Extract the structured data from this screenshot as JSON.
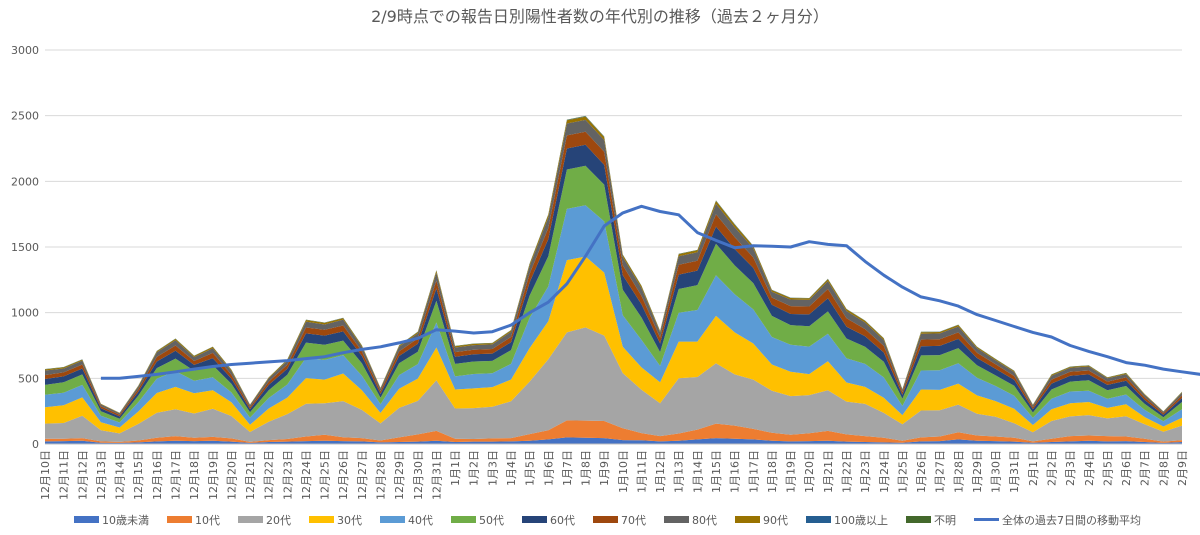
{
  "chart_data": {
    "type": "area",
    "title": "2/9時点での報告日別陽性者数の年代別の推移（過去２ヶ月分）",
    "xlabel": "",
    "ylabel": "",
    "ylim": [
      0,
      3000
    ],
    "yticks": [
      0,
      500,
      1000,
      1500,
      2000,
      2500,
      3000
    ],
    "grid": "horizontal",
    "legend_position": "bottom",
    "categories": [
      "12月10日",
      "12月11日",
      "12月12日",
      "12月13日",
      "12月14日",
      "12月15日",
      "12月16日",
      "12月17日",
      "12月18日",
      "12月19日",
      "12月20日",
      "12月21日",
      "12月22日",
      "12月23日",
      "12月24日",
      "12月25日",
      "12月26日",
      "12月27日",
      "12月28日",
      "12月29日",
      "12月30日",
      "12月31日",
      "1月1日",
      "1月2日",
      "1月3日",
      "1月4日",
      "1月5日",
      "1月6日",
      "1月7日",
      "1月8日",
      "1月9日",
      "1月10日",
      "1月11日",
      "1月12日",
      "1月13日",
      "1月14日",
      "1月15日",
      "1月16日",
      "1月17日",
      "1月18日",
      "1月19日",
      "1月20日",
      "1月21日",
      "1月22日",
      "1月23日",
      "1月24日",
      "1月25日",
      "1月26日",
      "1月27日",
      "1月28日",
      "1月29日",
      "1月30日",
      "1月31日",
      "2月1日",
      "2月2日",
      "2月3日",
      "2月4日",
      "2月5日",
      "2月6日",
      "2月7日",
      "2月8日",
      "2月9日"
    ],
    "series": [
      {
        "name": "10歳未満",
        "color": "#4472c4",
        "values": [
          20,
          22,
          25,
          10,
          8,
          12,
          20,
          25,
          22,
          24,
          18,
          8,
          15,
          18,
          22,
          25,
          22,
          20,
          12,
          15,
          18,
          25,
          15,
          18,
          18,
          20,
          25,
          35,
          50,
          48,
          45,
          30,
          28,
          20,
          25,
          35,
          45,
          40,
          35,
          25,
          20,
          22,
          25,
          18,
          15,
          12,
          10,
          20,
          22,
          35,
          25,
          22,
          18,
          10,
          15,
          20,
          25,
          20,
          22,
          15,
          8,
          15
        ]
      },
      {
        "name": "10代",
        "color": "#ed7d31",
        "values": [
          20,
          18,
          20,
          10,
          8,
          15,
          28,
          35,
          25,
          30,
          25,
          8,
          15,
          20,
          35,
          45,
          30,
          25,
          15,
          35,
          55,
          75,
          25,
          20,
          25,
          25,
          50,
          70,
          130,
          130,
          130,
          90,
          55,
          40,
          55,
          75,
          110,
          100,
          80,
          60,
          50,
          60,
          75,
          55,
          45,
          35,
          15,
          30,
          35,
          55,
          40,
          35,
          30,
          10,
          25,
          40,
          40,
          40,
          35,
          25,
          10,
          15
        ]
      },
      {
        "name": "20代",
        "color": "#a5a5a5",
        "values": [
          115,
          120,
          170,
          85,
          65,
          125,
          190,
          205,
          185,
          215,
          170,
          75,
          140,
          190,
          250,
          240,
          275,
          215,
          130,
          225,
          255,
          385,
          230,
          235,
          240,
          280,
          400,
          540,
          670,
          710,
          650,
          420,
          330,
          250,
          420,
          400,
          460,
          390,
          375,
          320,
          295,
          290,
          310,
          250,
          245,
          190,
          125,
          205,
          200,
          210,
          165,
          150,
          110,
          70,
          135,
          150,
          155,
          135,
          155,
          110,
          75,
          110
        ]
      },
      {
        "name": "30代",
        "color": "#ffc000",
        "values": [
          125,
          135,
          140,
          60,
          45,
          95,
          150,
          170,
          155,
          140,
          105,
          55,
          100,
          125,
          195,
          180,
          210,
          150,
          80,
          145,
          170,
          250,
          145,
          150,
          150,
          165,
          255,
          290,
          550,
          540,
          480,
          200,
          170,
          160,
          280,
          270,
          360,
          320,
          275,
          200,
          185,
          160,
          220,
          145,
          130,
          115,
          70,
          160,
          155,
          160,
          140,
          120,
          110,
          55,
          90,
          100,
          100,
          80,
          90,
          55,
          40,
          60
        ]
      },
      {
        "name": "40代",
        "color": "#5b9bd5",
        "values": [
          95,
          95,
          95,
          50,
          38,
          70,
          110,
          120,
          95,
          100,
          75,
          55,
          80,
          100,
          155,
          150,
          140,
          110,
          65,
          105,
          110,
          190,
          100,
          110,
          105,
          120,
          230,
          265,
          390,
          390,
          390,
          240,
          210,
          125,
          220,
          240,
          310,
          290,
          260,
          210,
          205,
          210,
          210,
          185,
          175,
          155,
          70,
          145,
          150,
          155,
          135,
          115,
          100,
          55,
          80,
          90,
          85,
          70,
          75,
          55,
          40,
          65
        ]
      },
      {
        "name": "50代",
        "color": "#70ad47",
        "values": [
          75,
          80,
          80,
          35,
          28,
          50,
          80,
          95,
          75,
          90,
          65,
          40,
          60,
          75,
          115,
          115,
          110,
          95,
          50,
          90,
          95,
          165,
          95,
          95,
          95,
          105,
          170,
          230,
          300,
          300,
          280,
          195,
          170,
          105,
          180,
          190,
          240,
          220,
          200,
          160,
          150,
          155,
          170,
          150,
          130,
          120,
          55,
          115,
          115,
          115,
          95,
          80,
          75,
          40,
          70,
          75,
          80,
          65,
          65,
          45,
          30,
          55
        ]
      },
      {
        "name": "60代",
        "color": "#264478",
        "values": [
          45,
          45,
          45,
          22,
          18,
          30,
          50,
          60,
          45,
          55,
          40,
          25,
          40,
          45,
          70,
          70,
          70,
          55,
          30,
          55,
          60,
          95,
          55,
          55,
          55,
          60,
          100,
          130,
          160,
          160,
          150,
          110,
          100,
          65,
          110,
          110,
          130,
          125,
          115,
          85,
          85,
          90,
          100,
          90,
          80,
          70,
          30,
          70,
          70,
          70,
          55,
          50,
          45,
          25,
          45,
          45,
          45,
          40,
          40,
          30,
          20,
          30
        ]
      },
      {
        "name": "70代",
        "color": "#9e480e",
        "values": [
          30,
          30,
          30,
          15,
          12,
          20,
          35,
          40,
          30,
          40,
          30,
          15,
          25,
          30,
          45,
          45,
          45,
          35,
          20,
          35,
          40,
          60,
          35,
          35,
          35,
          40,
          65,
          85,
          100,
          100,
          100,
          75,
          65,
          45,
          75,
          75,
          95,
          90,
          80,
          55,
          60,
          60,
          70,
          65,
          55,
          50,
          20,
          50,
          50,
          50,
          40,
          35,
          30,
          15,
          30,
          30,
          30,
          25,
          25,
          20,
          12,
          20
        ]
      },
      {
        "name": "80代",
        "color": "#636363",
        "values": [
          35,
          30,
          30,
          15,
          12,
          20,
          35,
          40,
          30,
          35,
          28,
          15,
          25,
          30,
          45,
          40,
          45,
          35,
          20,
          35,
          40,
          60,
          35,
          35,
          35,
          40,
          60,
          80,
          90,
          90,
          90,
          65,
          60,
          40,
          65,
          65,
          80,
          75,
          70,
          45,
          50,
          50,
          60,
          55,
          50,
          45,
          18,
          45,
          45,
          45,
          35,
          30,
          30,
          15,
          30,
          30,
          30,
          25,
          25,
          20,
          10,
          20
        ]
      },
      {
        "name": "90代",
        "color": "#997300",
        "values": [
          8,
          8,
          8,
          4,
          3,
          5,
          8,
          10,
          8,
          10,
          8,
          4,
          6,
          8,
          12,
          12,
          12,
          9,
          5,
          9,
          10,
          15,
          9,
          9,
          9,
          10,
          15,
          20,
          25,
          25,
          22,
          15,
          15,
          10,
          15,
          15,
          20,
          20,
          17,
          12,
          12,
          12,
          15,
          13,
          12,
          11,
          5,
          11,
          11,
          11,
          9,
          8,
          8,
          4,
          7,
          7,
          7,
          6,
          6,
          5,
          3,
          5
        ]
      },
      {
        "name": "100歳以上",
        "color": "#255e91",
        "values": [
          1,
          1,
          1,
          0,
          0,
          0,
          1,
          1,
          1,
          1,
          1,
          0,
          0,
          1,
          1,
          1,
          1,
          1,
          0,
          1,
          1,
          1,
          1,
          1,
          1,
          1,
          1,
          2,
          2,
          2,
          2,
          1,
          1,
          1,
          1,
          1,
          2,
          2,
          1,
          1,
          1,
          1,
          1,
          1,
          1,
          1,
          0,
          1,
          1,
          1,
          1,
          1,
          1,
          0,
          1,
          1,
          1,
          1,
          1,
          0,
          0,
          1
        ]
      },
      {
        "name": "不明",
        "color": "#43682b",
        "values": [
          2,
          2,
          2,
          1,
          1,
          1,
          2,
          2,
          2,
          2,
          2,
          1,
          1,
          2,
          2,
          2,
          2,
          2,
          1,
          2,
          2,
          3,
          2,
          2,
          2,
          2,
          3,
          3,
          3,
          3,
          3,
          2,
          2,
          2,
          2,
          2,
          3,
          3,
          2,
          2,
          2,
          2,
          2,
          2,
          2,
          2,
          1,
          2,
          2,
          2,
          2,
          2,
          2,
          1,
          2,
          2,
          2,
          2,
          2,
          1,
          1,
          2
        ]
      }
    ],
    "moving_average": {
      "name": "全体の過去7日間の移動平均",
      "color": "#4472c4",
      "values": [
        null,
        null,
        null,
        null,
        null,
        null,
        null,
        null,
        null,
        null,
        null,
        null,
        null,
        null,
        null,
        null,
        null,
        null,
        null,
        null,
        null,
        null,
        null,
        null,
        null,
        null,
        null,
        null,
        null,
        null,
        null,
        null,
        null,
        null,
        null,
        null,
        null,
        null,
        null,
        null,
        null,
        null,
        null,
        null,
        null,
        null,
        null,
        null,
        null,
        null,
        null,
        null,
        null,
        null,
        null,
        null,
        null,
        null,
        null,
        null,
        null,
        null
      ],
      "points": [
        [
          3,
          500
        ],
        [
          4,
          500
        ],
        [
          5,
          515
        ],
        [
          6,
          530
        ],
        [
          7,
          550
        ],
        [
          8,
          570
        ],
        [
          9,
          590
        ],
        [
          10,
          605
        ],
        [
          11,
          615
        ],
        [
          12,
          625
        ],
        [
          13,
          635
        ],
        [
          14,
          650
        ],
        [
          15,
          665
        ],
        [
          16,
          695
        ],
        [
          17,
          720
        ],
        [
          18,
          740
        ],
        [
          19,
          770
        ],
        [
          20,
          805
        ],
        [
          21,
          870
        ],
        [
          22,
          860
        ],
        [
          23,
          845
        ],
        [
          24,
          855
        ],
        [
          25,
          905
        ],
        [
          26,
          1000
        ],
        [
          27,
          1080
        ],
        [
          28,
          1220
        ],
        [
          29,
          1430
        ],
        [
          30,
          1660
        ],
        [
          31,
          1760
        ],
        [
          32,
          1810
        ],
        [
          33,
          1770
        ],
        [
          34,
          1745
        ],
        [
          35,
          1610
        ],
        [
          36,
          1550
        ],
        [
          37,
          1495
        ],
        [
          38,
          1510
        ],
        [
          39,
          1505
        ],
        [
          40,
          1500
        ],
        [
          41,
          1540
        ],
        [
          42,
          1520
        ],
        [
          43,
          1510
        ],
        [
          44,
          1390
        ],
        [
          45,
          1285
        ],
        [
          46,
          1195
        ],
        [
          47,
          1120
        ],
        [
          48,
          1090
        ],
        [
          49,
          1050
        ],
        [
          50,
          985
        ],
        [
          51,
          940
        ],
        [
          52,
          895
        ],
        [
          53,
          850
        ],
        [
          54,
          815
        ],
        [
          55,
          750
        ],
        [
          56,
          705
        ],
        [
          57,
          665
        ],
        [
          58,
          620
        ],
        [
          59,
          600
        ],
        [
          60,
          570
        ],
        [
          61,
          550
        ],
        [
          62,
          530
        ]
      ]
    }
  }
}
